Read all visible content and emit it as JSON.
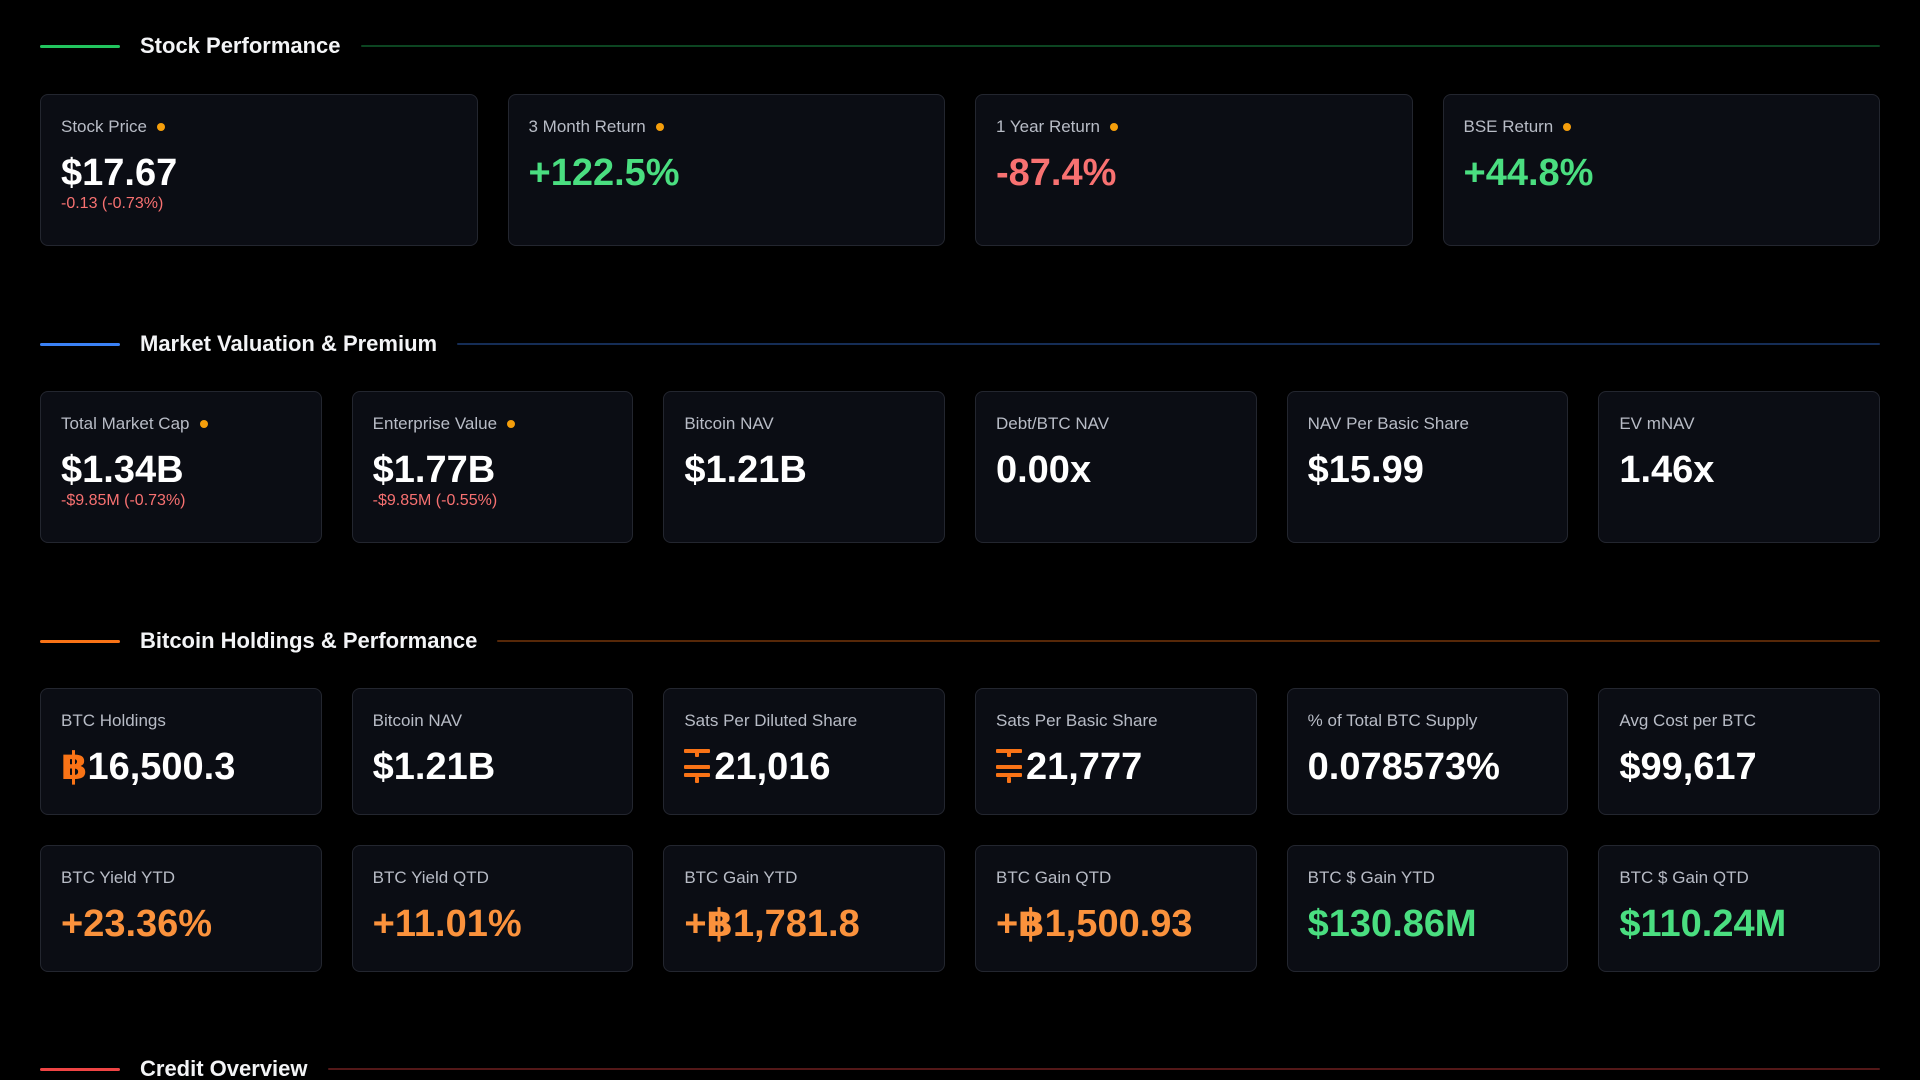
{
  "colors": {
    "green_accent": "#22c55e",
    "blue_accent": "#3b82f6",
    "orange_accent": "#f97316",
    "red_accent": "#ef4444",
    "positive": "#4ade80",
    "negative": "#f87171",
    "indicator_dot": "#f59e0b"
  },
  "sections": {
    "stock": {
      "title": "Stock Performance",
      "cards": [
        {
          "label": "Stock Price",
          "value": "$17.67",
          "sub": "-0.13 (-0.73%)",
          "indicator": true
        },
        {
          "label": "3 Month Return",
          "value": "+122.5%",
          "indicator": true
        },
        {
          "label": "1 Year Return",
          "value": "-87.4%",
          "indicator": true
        },
        {
          "label": "BSE Return",
          "value": "+44.8%",
          "indicator": true
        }
      ]
    },
    "valuation": {
      "title": "Market Valuation & Premium",
      "cards": [
        {
          "label": "Total Market Cap",
          "value": "$1.34B",
          "sub": "-$9.85M (-0.73%)",
          "indicator": true
        },
        {
          "label": "Enterprise Value",
          "value": "$1.77B",
          "sub": "-$9.85M (-0.55%)",
          "indicator": true
        },
        {
          "label": "Bitcoin NAV",
          "value": "$1.21B"
        },
        {
          "label": "Debt/BTC NAV",
          "value": "0.00x"
        },
        {
          "label": "NAV Per Basic Share",
          "value": "$15.99"
        },
        {
          "label": "EV mNAV",
          "value": "1.46x"
        }
      ]
    },
    "holdings": {
      "title": "Bitcoin Holdings & Performance",
      "row1": [
        {
          "label": "BTC Holdings",
          "symbol": "฿",
          "value": "16,500.3",
          "icon": "bitcoin-icon"
        },
        {
          "label": "Bitcoin NAV",
          "value": "$1.21B"
        },
        {
          "label": "Sats Per Diluted Share",
          "value": "21,016",
          "icon": "sats-icon"
        },
        {
          "label": "Sats Per Basic Share",
          "value": "21,777",
          "icon": "sats-icon"
        },
        {
          "label": "% of Total BTC Supply",
          "value": "0.078573%"
        },
        {
          "label": "Avg Cost per BTC",
          "value": "$99,617"
        }
      ],
      "row2": [
        {
          "label": "BTC Yield YTD",
          "value": "+23.36%"
        },
        {
          "label": "BTC Yield QTD",
          "value": "+11.01%"
        },
        {
          "label": "BTC Gain YTD",
          "value": "+฿1,781.8"
        },
        {
          "label": "BTC Gain QTD",
          "value": "+฿1,500.93"
        },
        {
          "label": "BTC $ Gain YTD",
          "value": "$130.86M"
        },
        {
          "label": "BTC $ Gain QTD",
          "value": "$110.24M"
        }
      ]
    },
    "credit": {
      "title": "Credit Overview"
    }
  }
}
